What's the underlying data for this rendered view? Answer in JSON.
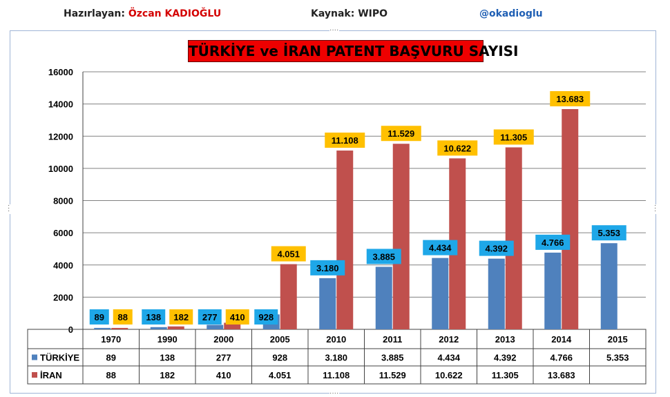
{
  "header": {
    "author_label": "Hazırlayan:",
    "author_name": "Özcan KADIOĞLU",
    "source": "Kaynak: WIPO",
    "handle": "@okadioglu"
  },
  "colors": {
    "turkiye": "#4f81bd",
    "iran": "#c0504d",
    "turkiye_label_bg": "#1ea7e8",
    "iran_label_bg": "#ffc000",
    "title_bg": "#ee0000",
    "grid": "#808080"
  },
  "chart_data": {
    "type": "bar",
    "title": "TÜRKİYE ve İRAN PATENT BAŞVURU SAYISI",
    "categories": [
      "1970",
      "1990",
      "2000",
      "2005",
      "2010",
      "2011",
      "2012",
      "2013",
      "2014",
      "2015"
    ],
    "series": [
      {
        "name": "TÜRKİYE",
        "values": [
          89,
          138,
          277,
          928,
          3180,
          3885,
          4434,
          4392,
          4766,
          5353
        ],
        "labels": [
          "89",
          "138",
          "277",
          "928",
          "3.180",
          "3.885",
          "4.434",
          "4.392",
          "4.766",
          "5.353"
        ]
      },
      {
        "name": "İRAN",
        "values": [
          88,
          182,
          410,
          4051,
          11108,
          11529,
          10622,
          11305,
          13683,
          null
        ],
        "labels": [
          "88",
          "182",
          "410",
          "4.051",
          "11.108",
          "11.529",
          "10.622",
          "11.305",
          "13.683",
          ""
        ]
      }
    ],
    "ylim": [
      0,
      16000
    ],
    "yticks": [
      "0",
      "2000",
      "4000",
      "6000",
      "8000",
      "10000",
      "12000",
      "14000",
      "16000"
    ],
    "grid": true,
    "legend": "data table below chart"
  }
}
